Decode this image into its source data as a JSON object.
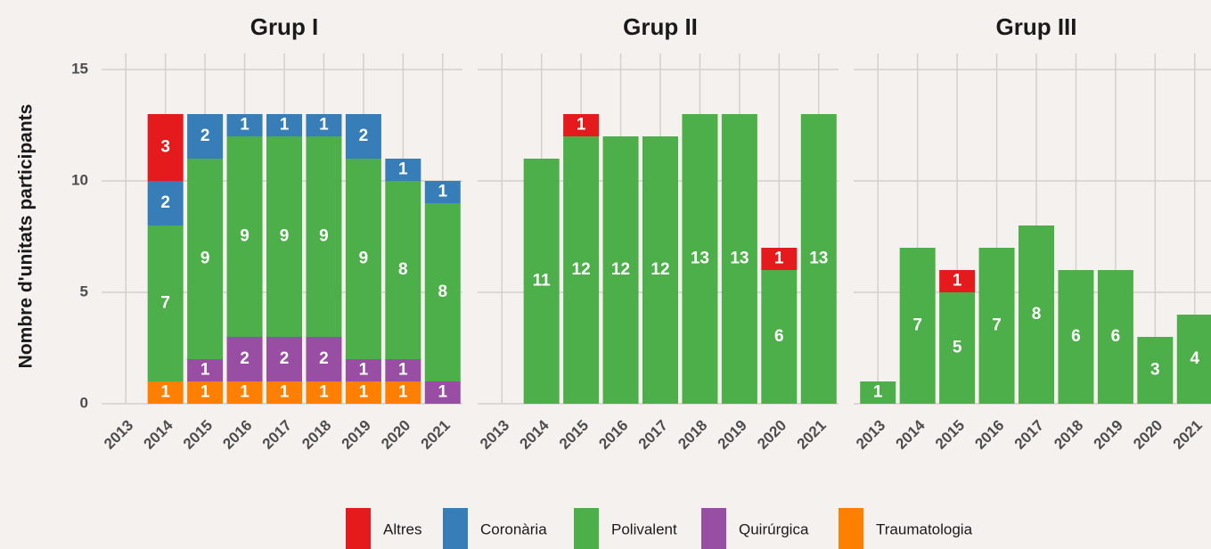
{
  "chart_data": {
    "type": "bar",
    "stacked": true,
    "y_label": "Nombre d'unitats participants",
    "ylim": [
      0,
      15
    ],
    "yticks": [
      0,
      5,
      10,
      15
    ],
    "grid": true,
    "series": [
      {
        "name": "Altres",
        "color": "#e41a1c"
      },
      {
        "name": "Coronària",
        "color": "#377eb8"
      },
      {
        "name": "Polivalent",
        "color": "#4daf4a"
      },
      {
        "name": "Quirúrgica",
        "color": "#984ea3"
      },
      {
        "name": "Traumatologia",
        "color": "#ff7f00"
      }
    ],
    "panels": [
      {
        "title": "Grup I",
        "categories": [
          "2013",
          "2014",
          "2015",
          "2016",
          "2017",
          "2018",
          "2019",
          "2020",
          "2021"
        ],
        "values": [
          [
            null,
            3,
            null,
            null,
            null,
            null,
            null,
            null,
            null
          ],
          [
            null,
            2,
            2,
            1,
            1,
            1,
            2,
            1,
            1
          ],
          [
            null,
            7,
            9,
            9,
            9,
            9,
            9,
            8,
            8
          ],
          [
            null,
            null,
            1,
            2,
            2,
            2,
            1,
            1,
            1
          ],
          [
            null,
            1,
            1,
            1,
            1,
            1,
            1,
            1,
            null
          ]
        ]
      },
      {
        "title": "Grup II",
        "categories": [
          "2013",
          "2014",
          "2015",
          "2016",
          "2017",
          "2018",
          "2019",
          "2020",
          "2021"
        ],
        "values": [
          [
            null,
            null,
            1,
            null,
            null,
            null,
            null,
            1,
            null
          ],
          [
            null,
            null,
            null,
            null,
            null,
            null,
            null,
            null,
            null
          ],
          [
            null,
            11,
            12,
            12,
            12,
            13,
            13,
            6,
            13
          ],
          [
            null,
            null,
            null,
            null,
            null,
            null,
            null,
            null,
            null
          ],
          [
            null,
            null,
            null,
            null,
            null,
            null,
            null,
            null,
            null
          ]
        ]
      },
      {
        "title": "Grup III",
        "categories": [
          "2013",
          "2014",
          "2015",
          "2016",
          "2017",
          "2018",
          "2019",
          "2020",
          "2021"
        ],
        "values": [
          [
            null,
            null,
            1,
            null,
            null,
            null,
            null,
            null,
            null
          ],
          [
            null,
            null,
            null,
            null,
            null,
            null,
            null,
            null,
            null
          ],
          [
            1,
            7,
            5,
            7,
            8,
            6,
            6,
            3,
            4
          ],
          [
            null,
            null,
            null,
            null,
            null,
            null,
            null,
            null,
            null
          ],
          [
            null,
            null,
            null,
            null,
            null,
            null,
            null,
            null,
            null
          ]
        ]
      }
    ],
    "legend": "bottom"
  }
}
